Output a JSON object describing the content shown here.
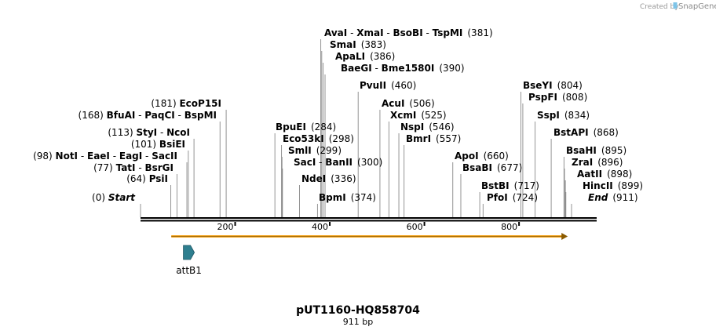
{
  "credit": {
    "prefix": "Created by",
    "brand": "SnapGene",
    "logo_icon": "snapgene-logo-icon"
  },
  "map": {
    "name": "pUT1160-HQ858704",
    "length_label": "911 bp",
    "length_bp": 911,
    "axis_ticks": [
      200,
      400,
      600,
      800
    ],
    "colors": {
      "backbone": "#000000",
      "primer": "#f5a623",
      "feature": "#2e7f8f",
      "site_line": "#888888"
    }
  },
  "sites": [
    {
      "id": "start",
      "parts": [
        "Start"
      ],
      "pos": 0,
      "label": "(0)",
      "side": "left",
      "italic": true
    },
    {
      "id": "psii",
      "parts": [
        "PsiI"
      ],
      "pos": 64,
      "label": "(64)",
      "side": "left"
    },
    {
      "id": "tati",
      "parts": [
        "TatI",
        "BsrGI"
      ],
      "pos": 77,
      "label": "(77)",
      "side": "left"
    },
    {
      "id": "noti",
      "parts": [
        "NotI",
        "EaeI",
        "EagI",
        "SacII"
      ],
      "pos": 98,
      "label": "(98)",
      "side": "left"
    },
    {
      "id": "bsiei",
      "parts": [
        "BsiEI"
      ],
      "pos": 101,
      "label": "(101)",
      "side": "left"
    },
    {
      "id": "styi",
      "parts": [
        "StyI",
        "NcoI"
      ],
      "pos": 113,
      "label": "(113)",
      "side": "left"
    },
    {
      "id": "bfuai",
      "parts": [
        "BfuAI",
        "PaqCI",
        "BspMI"
      ],
      "pos": 168,
      "label": "(168)",
      "side": "left"
    },
    {
      "id": "ecop15i",
      "parts": [
        "EcoP15I"
      ],
      "pos": 181,
      "label": "(181)",
      "side": "left"
    },
    {
      "id": "bpuei",
      "parts": [
        "BpuEI"
      ],
      "pos": 284,
      "label": "(284)",
      "side": "right"
    },
    {
      "id": "eco53ki",
      "parts": [
        "Eco53kI"
      ],
      "pos": 298,
      "label": "(298)",
      "side": "right"
    },
    {
      "id": "smli",
      "parts": [
        "SmlI"
      ],
      "pos": 299,
      "label": "(299)",
      "side": "right"
    },
    {
      "id": "saci",
      "parts": [
        "SacI",
        "BanII"
      ],
      "pos": 300,
      "label": "(300)",
      "side": "right"
    },
    {
      "id": "ndei",
      "parts": [
        "NdeI"
      ],
      "pos": 336,
      "label": "(336)",
      "side": "right"
    },
    {
      "id": "bpmi",
      "parts": [
        "BpmI"
      ],
      "pos": 374,
      "label": "(374)",
      "side": "right"
    },
    {
      "id": "avai",
      "parts": [
        "AvaI",
        "XmaI",
        "BsoBI",
        "TspMI"
      ],
      "pos": 381,
      "label": "(381)",
      "side": "right"
    },
    {
      "id": "smai",
      "parts": [
        "SmaI"
      ],
      "pos": 383,
      "label": "(383)",
      "side": "right"
    },
    {
      "id": "apali",
      "parts": [
        "ApaLI"
      ],
      "pos": 386,
      "label": "(386)",
      "side": "right"
    },
    {
      "id": "baegi",
      "parts": [
        "BaeGI",
        "Bme1580I"
      ],
      "pos": 390,
      "label": "(390)",
      "side": "right"
    },
    {
      "id": "pvuii",
      "parts": [
        "PvuII"
      ],
      "pos": 460,
      "label": "(460)",
      "side": "right"
    },
    {
      "id": "acui",
      "parts": [
        "AcuI"
      ],
      "pos": 506,
      "label": "(506)",
      "side": "right"
    },
    {
      "id": "xcmi",
      "parts": [
        "XcmI"
      ],
      "pos": 525,
      "label": "(525)",
      "side": "right"
    },
    {
      "id": "nspi",
      "parts": [
        "NspI"
      ],
      "pos": 546,
      "label": "(546)",
      "side": "right"
    },
    {
      "id": "bmri",
      "parts": [
        "BmrI"
      ],
      "pos": 557,
      "label": "(557)",
      "side": "right"
    },
    {
      "id": "apoi",
      "parts": [
        "ApoI"
      ],
      "pos": 660,
      "label": "(660)",
      "side": "right"
    },
    {
      "id": "bsabi",
      "parts": [
        "BsaBI"
      ],
      "pos": 677,
      "label": "(677)",
      "side": "right"
    },
    {
      "id": "bstbi",
      "parts": [
        "BstBI"
      ],
      "pos": 717,
      "label": "(717)",
      "side": "right"
    },
    {
      "id": "pfoi",
      "parts": [
        "PfoI"
      ],
      "pos": 724,
      "label": "(724)",
      "side": "right"
    },
    {
      "id": "bseyi",
      "parts": [
        "BseYI"
      ],
      "pos": 804,
      "label": "(804)",
      "side": "right"
    },
    {
      "id": "pspfi",
      "parts": [
        "PspFI"
      ],
      "pos": 808,
      "label": "(808)",
      "side": "right"
    },
    {
      "id": "sspi",
      "parts": [
        "SspI"
      ],
      "pos": 834,
      "label": "(834)",
      "side": "right"
    },
    {
      "id": "bstapi",
      "parts": [
        "BstAPI"
      ],
      "pos": 868,
      "label": "(868)",
      "side": "right"
    },
    {
      "id": "bsahi",
      "parts": [
        "BsaHI"
      ],
      "pos": 895,
      "label": "(895)",
      "side": "right"
    },
    {
      "id": "zrai",
      "parts": [
        "ZraI"
      ],
      "pos": 896,
      "label": "(896)",
      "side": "right"
    },
    {
      "id": "aatii",
      "parts": [
        "AatII"
      ],
      "pos": 898,
      "label": "(898)",
      "side": "right"
    },
    {
      "id": "hincii",
      "parts": [
        "HincII"
      ],
      "pos": 899,
      "label": "(899)",
      "side": "right"
    },
    {
      "id": "end",
      "parts": [
        "End"
      ],
      "pos": 911,
      "label": "(911)",
      "side": "right",
      "italic": true
    }
  ],
  "features": [
    {
      "name": "attB1",
      "type": "feature",
      "start": 74,
      "end": 96,
      "icon": "feature-arrow-icon"
    },
    {
      "name": "",
      "type": "primer",
      "start": 65,
      "end": 903
    }
  ]
}
